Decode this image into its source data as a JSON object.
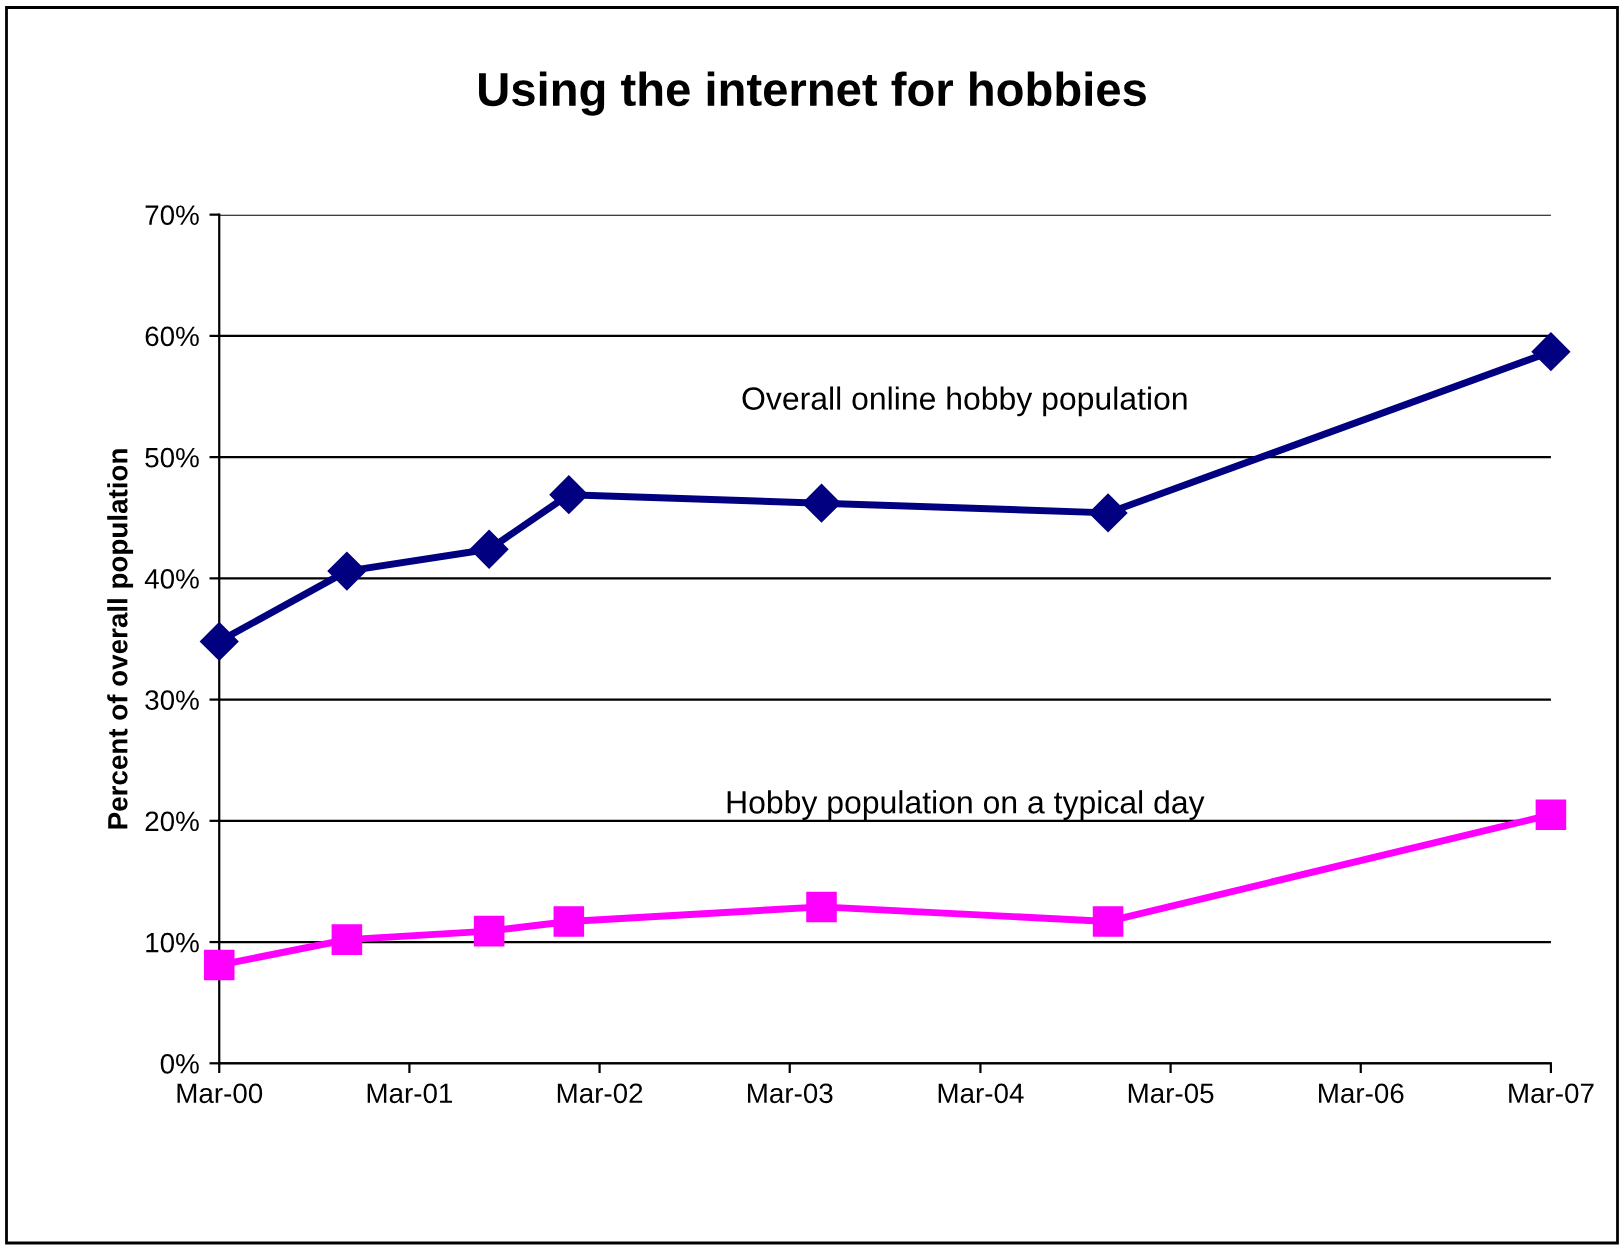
{
  "chart_data": {
    "type": "line",
    "title": "Using the internet for hobbies",
    "ylabel": "Percent of overall population",
    "x": [
      "2000-03",
      "2000-11",
      "2001-08",
      "2002-01",
      "2003-05",
      "2004-11",
      "2007-03"
    ],
    "series": [
      {
        "name": "Overall online hobby population",
        "color": "#000080",
        "marker": "diamond",
        "values": [
          34.8,
          40.6,
          42.4,
          46.9,
          46.2,
          45.4,
          58.7
        ]
      },
      {
        "name": "Hobby population on a typical day",
        "color": "#ff00ff",
        "marker": "square",
        "values": [
          8.1,
          10.2,
          10.9,
          11.7,
          12.9,
          11.7,
          20.5
        ]
      }
    ],
    "xlim": [
      "2000-03",
      "2007-03"
    ],
    "xticks": [
      {
        "value": "2000-03",
        "label": "Mar-00"
      },
      {
        "value": "2001-03",
        "label": "Mar-01"
      },
      {
        "value": "2002-03",
        "label": "Mar-02"
      },
      {
        "value": "2003-03",
        "label": "Mar-03"
      },
      {
        "value": "2004-03",
        "label": "Mar-04"
      },
      {
        "value": "2005-03",
        "label": "Mar-05"
      },
      {
        "value": "2006-03",
        "label": "Mar-06"
      },
      {
        "value": "2007-03",
        "label": "Mar-07"
      }
    ],
    "ylim": [
      0,
      70
    ],
    "yticks": [
      {
        "value": 0,
        "label": "0%"
      },
      {
        "value": 10,
        "label": "10%"
      },
      {
        "value": 20,
        "label": "20%"
      },
      {
        "value": 30,
        "label": "30%"
      },
      {
        "value": 40,
        "label": "40%"
      },
      {
        "value": 50,
        "label": "50%"
      },
      {
        "value": 60,
        "label": "60%"
      },
      {
        "value": 70,
        "label": "70%"
      }
    ],
    "grid": "y",
    "legend": false,
    "line_style": "solid"
  }
}
